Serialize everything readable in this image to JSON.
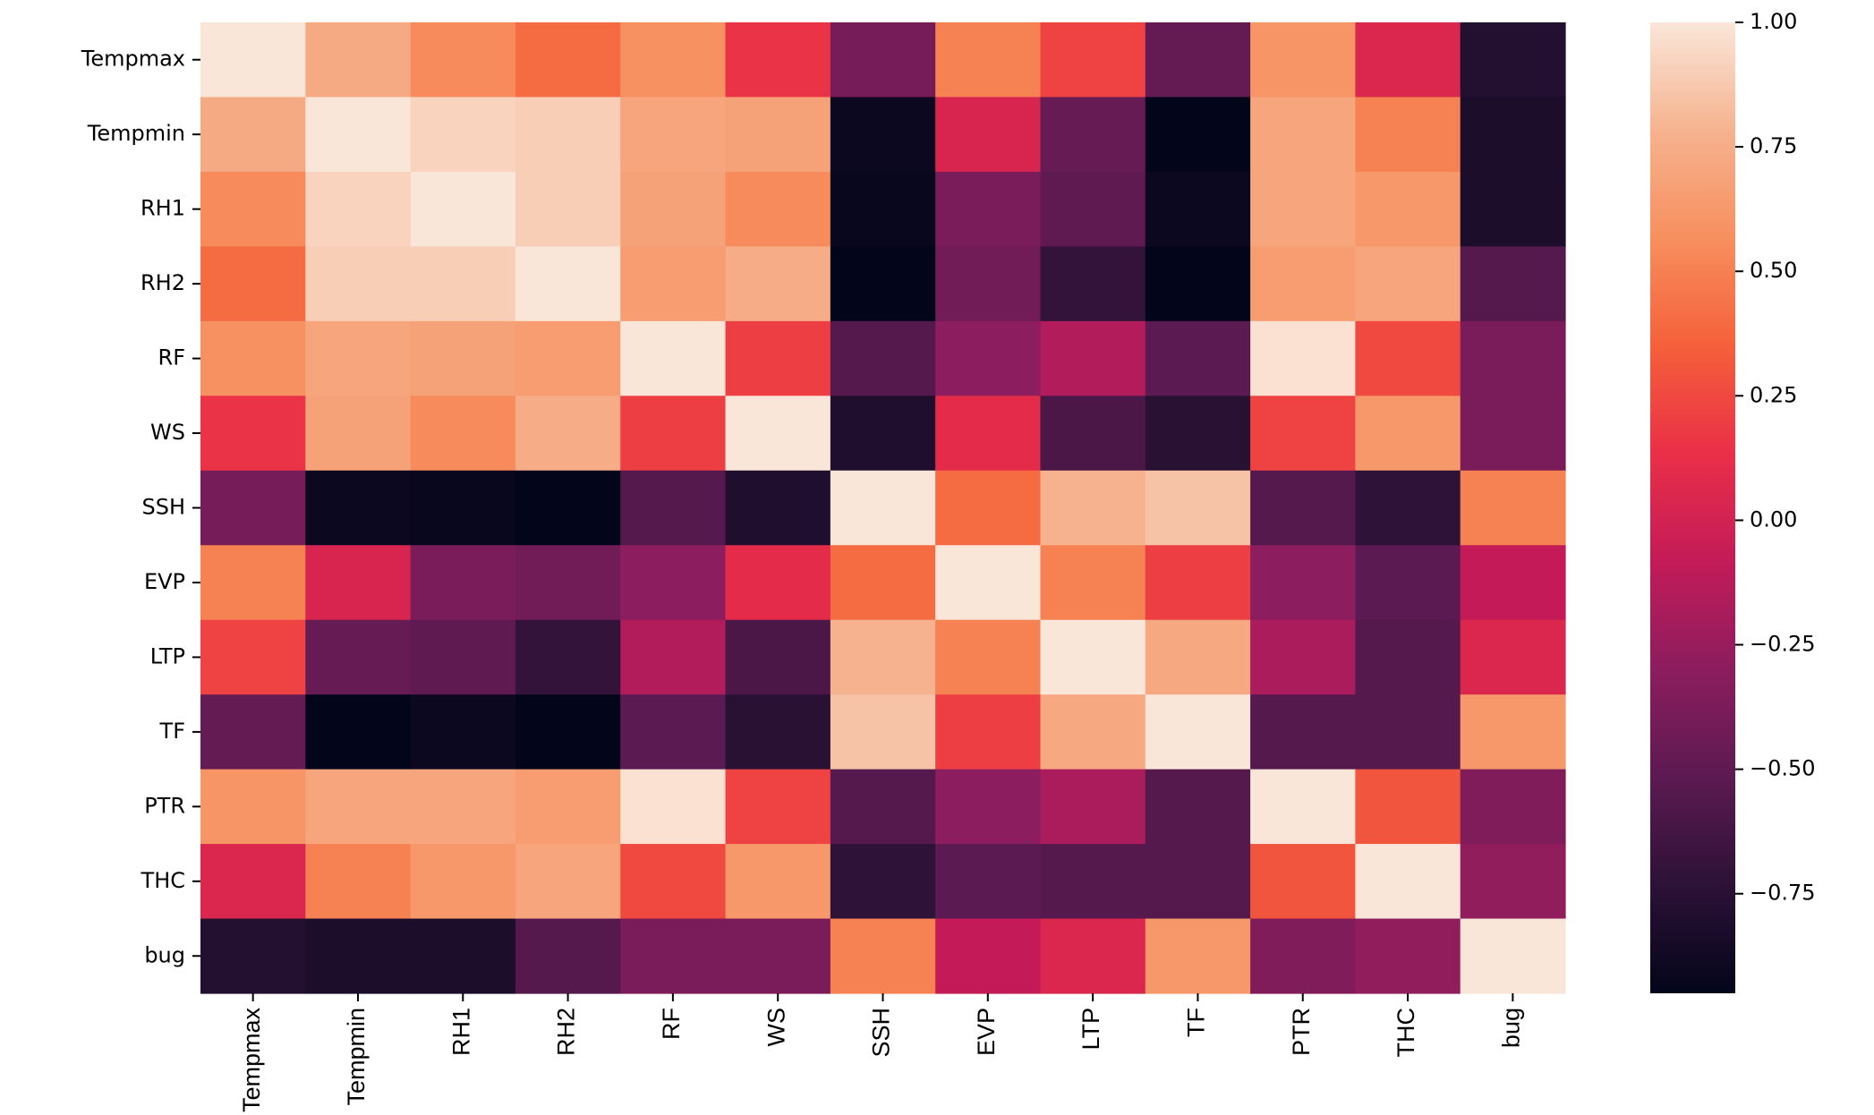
{
  "chart_data": {
    "type": "heatmap",
    "title": "",
    "xlabel": "",
    "ylabel": "",
    "labels": [
      "Tempmax",
      "Tempmin",
      "RH1",
      "RH2",
      "RF",
      "WS",
      "SSH",
      "EVP",
      "LTP",
      "TF",
      "PTR",
      "THC",
      "bug"
    ],
    "matrix": [
      [
        1.0,
        0.73,
        0.55,
        0.4,
        0.58,
        0.15,
        -0.4,
        0.5,
        0.22,
        -0.48,
        0.6,
        0.05,
        -0.78
      ],
      [
        0.73,
        1.0,
        0.92,
        0.9,
        0.7,
        0.68,
        -0.9,
        0.03,
        -0.47,
        -0.95,
        0.7,
        0.5,
        -0.82
      ],
      [
        0.55,
        0.92,
        1.0,
        0.9,
        0.68,
        0.55,
        -0.92,
        -0.38,
        -0.5,
        -0.9,
        0.7,
        0.62,
        -0.82
      ],
      [
        0.4,
        0.9,
        0.9,
        1.0,
        0.65,
        0.75,
        -0.95,
        -0.42,
        -0.7,
        -0.95,
        0.65,
        0.7,
        -0.55
      ],
      [
        0.58,
        0.7,
        0.68,
        0.65,
        1.0,
        0.2,
        -0.55,
        -0.3,
        -0.15,
        -0.52,
        0.98,
        0.25,
        -0.38
      ],
      [
        0.15,
        0.68,
        0.55,
        0.75,
        0.2,
        1.0,
        -0.8,
        0.1,
        -0.6,
        -0.75,
        0.22,
        0.62,
        -0.38
      ],
      [
        -0.4,
        -0.9,
        -0.92,
        -0.95,
        -0.55,
        -0.8,
        1.0,
        0.4,
        0.78,
        0.85,
        -0.55,
        -0.72,
        0.5
      ],
      [
        0.5,
        0.03,
        -0.38,
        -0.42,
        -0.3,
        0.1,
        0.4,
        1.0,
        0.5,
        0.2,
        -0.3,
        -0.52,
        -0.08
      ],
      [
        0.22,
        -0.47,
        -0.5,
        -0.7,
        -0.15,
        -0.6,
        0.78,
        0.5,
        1.0,
        0.72,
        -0.18,
        -0.55,
        0.05
      ],
      [
        -0.48,
        -0.95,
        -0.9,
        -0.95,
        -0.52,
        -0.75,
        0.85,
        0.2,
        0.72,
        1.0,
        -0.55,
        -0.55,
        0.62
      ],
      [
        0.6,
        0.7,
        0.7,
        0.65,
        0.98,
        0.22,
        -0.55,
        -0.3,
        -0.18,
        -0.55,
        1.0,
        0.3,
        -0.35
      ],
      [
        0.05,
        0.5,
        0.62,
        0.7,
        0.25,
        0.62,
        -0.72,
        -0.52,
        -0.55,
        -0.55,
        0.3,
        1.0,
        -0.28
      ],
      [
        -0.78,
        -0.82,
        -0.82,
        -0.55,
        -0.38,
        -0.38,
        0.5,
        -0.08,
        0.05,
        0.62,
        -0.35,
        -0.28,
        1.0
      ]
    ],
    "colorbar": {
      "min": -0.95,
      "max": 1.0,
      "ticks": [
        1.0,
        0.75,
        0.5,
        0.25,
        0.0,
        -0.25,
        -0.5,
        -0.75
      ],
      "tick_labels": [
        "1.00",
        "0.75",
        "0.50",
        "0.25",
        "0.00",
        "−0.25",
        "−0.50",
        "−0.75"
      ],
      "colormap": "rocket",
      "stops": [
        "#03051a",
        "#2c1236",
        "#5c1a51",
        "#8c1d5e",
        "#c31b58",
        "#ea2f48",
        "#f5603a",
        "#f78f5e",
        "#f6b38f",
        "#fae6d9"
      ]
    },
    "grid": false,
    "legend": "colorbar-right"
  }
}
